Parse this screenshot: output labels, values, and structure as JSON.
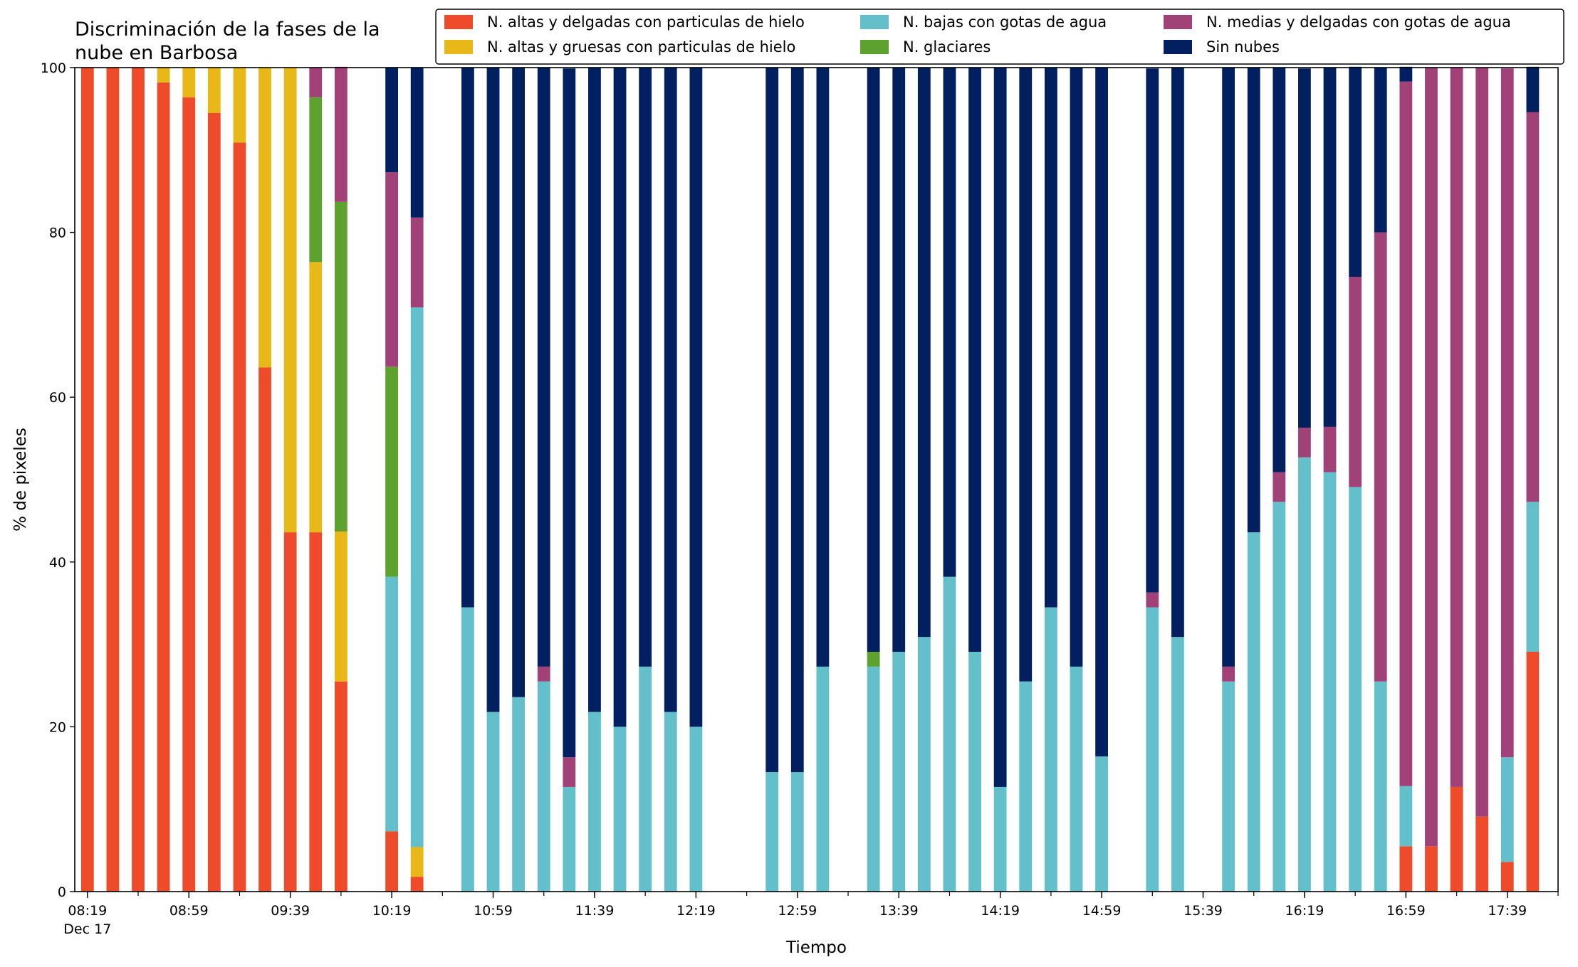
{
  "chart_data": {
    "type": "bar",
    "stacked": true,
    "title": "Discriminación de la fases de la\nnube en Barbosa",
    "xlabel": "Tiempo",
    "ylabel": "% de pixeles",
    "ylim": [
      0,
      100
    ],
    "yticks": [
      0,
      20,
      40,
      60,
      80,
      100
    ],
    "xlim": [
      "08:14",
      "17:59"
    ],
    "xtick_labels": [
      "08:19",
      "08:59",
      "09:39",
      "10:19",
      "10:59",
      "11:39",
      "12:19",
      "12:59",
      "13:39",
      "14:19",
      "14:59",
      "15:39",
      "16:19",
      "16:59",
      "17:39"
    ],
    "xtick_sublabel": "Dec 17",
    "grid": false,
    "legend_position": "top-right",
    "x": [
      "08:19",
      "08:29",
      "08:39",
      "08:49",
      "08:59",
      "09:09",
      "09:19",
      "09:29",
      "09:39",
      "09:49",
      "09:59",
      "10:19",
      "10:29",
      "10:49",
      "10:59",
      "11:09",
      "11:19",
      "11:29",
      "11:39",
      "11:49",
      "11:59",
      "12:09",
      "12:19",
      "12:49",
      "12:59",
      "13:09",
      "13:29",
      "13:39",
      "13:49",
      "13:59",
      "14:09",
      "14:19",
      "14:29",
      "14:39",
      "14:49",
      "14:59",
      "15:19",
      "15:29",
      "15:49",
      "15:59",
      "16:09",
      "16:19",
      "16:29",
      "16:39",
      "16:49",
      "16:59",
      "17:09",
      "17:19",
      "17:29",
      "17:39",
      "17:49"
    ],
    "series": [
      {
        "name": "N. altas y delgadas con particulas de hielo",
        "color": "#ee4b2b",
        "values": [
          100,
          100,
          100,
          98.2,
          96.4,
          94.5,
          90.9,
          63.6,
          43.6,
          43.6,
          25.5,
          7.3,
          1.8,
          0,
          0,
          0,
          0,
          0,
          0,
          0,
          0,
          0,
          0,
          0,
          0,
          0,
          0,
          0,
          0,
          0,
          0,
          0,
          0,
          0,
          0,
          0,
          0,
          0,
          0,
          0,
          0,
          0,
          0,
          0,
          0,
          5.5,
          5.5,
          12.7,
          9.1,
          3.6,
          29.1
        ]
      },
      {
        "name": "N. altas y gruesas con particulas de hielo",
        "color": "#e8b818",
        "values": [
          0,
          0,
          0,
          1.8,
          3.6,
          5.5,
          9.1,
          36.4,
          56.4,
          32.8,
          18.2,
          0,
          3.6,
          0,
          0,
          0,
          0,
          0,
          0,
          0,
          0,
          0,
          0,
          0,
          0,
          0,
          0,
          0,
          0,
          0,
          0,
          0,
          0,
          0,
          0,
          0,
          0,
          0,
          0,
          0,
          0,
          0,
          0,
          0,
          0,
          0,
          0,
          0,
          0,
          0,
          0
        ]
      },
      {
        "name": "N. bajas con gotas de agua",
        "color": "#63bfca",
        "values": [
          0,
          0,
          0,
          0,
          0,
          0,
          0,
          0,
          0,
          0,
          0,
          30.9,
          65.5,
          34.5,
          21.8,
          23.6,
          25.5,
          12.7,
          21.8,
          20.0,
          27.3,
          21.8,
          20.0,
          14.5,
          14.5,
          27.3,
          27.3,
          29.1,
          30.9,
          38.2,
          29.1,
          12.7,
          25.5,
          34.5,
          27.3,
          16.4,
          34.5,
          30.9,
          25.5,
          43.6,
          47.3,
          52.7,
          50.9,
          49.1,
          25.5,
          7.3,
          0,
          0,
          0,
          12.7,
          18.2
        ]
      },
      {
        "name": "N. glaciares",
        "color": "#5da12f",
        "values": [
          0,
          0,
          0,
          0,
          0,
          0,
          0,
          0,
          0,
          20.0,
          40.0,
          25.5,
          0,
          0,
          0,
          0,
          0,
          0,
          0,
          0,
          0,
          0,
          0,
          0,
          0,
          0,
          1.8,
          0,
          0,
          0,
          0,
          0,
          0,
          0,
          0,
          0,
          0,
          0,
          0,
          0,
          0,
          0,
          0,
          0,
          0,
          0,
          0,
          0,
          0,
          0,
          0
        ]
      },
      {
        "name": "N. medias y delgadas con gotas de agua",
        "color": "#a04278",
        "values": [
          0,
          0,
          0,
          0,
          0,
          0,
          0,
          0,
          0,
          3.6,
          16.4,
          23.6,
          10.9,
          0,
          0,
          0,
          1.8,
          3.6,
          0,
          0,
          0,
          0,
          0,
          0,
          0,
          0,
          0,
          0,
          0,
          0,
          0,
          0,
          0,
          0,
          0,
          0,
          1.8,
          0,
          1.8,
          0,
          3.6,
          3.6,
          5.5,
          25.5,
          54.5,
          85.5,
          94.5,
          87.3,
          90.9,
          83.6,
          47.3
        ]
      },
      {
        "name": "Sin nubes",
        "color": "#02205f",
        "values": [
          0,
          0,
          0,
          0,
          0,
          0,
          0,
          0,
          0,
          0,
          0,
          12.7,
          18.2,
          65.5,
          78.2,
          76.4,
          72.7,
          83.6,
          78.2,
          80.0,
          72.7,
          78.2,
          80.0,
          85.5,
          85.5,
          72.7,
          70.9,
          70.9,
          69.1,
          61.8,
          70.9,
          87.3,
          74.5,
          65.5,
          72.7,
          83.6,
          63.6,
          69.1,
          72.7,
          56.4,
          49.1,
          43.6,
          43.6,
          25.5,
          20.0,
          1.8,
          0,
          0,
          0,
          0,
          5.5
        ]
      }
    ]
  }
}
